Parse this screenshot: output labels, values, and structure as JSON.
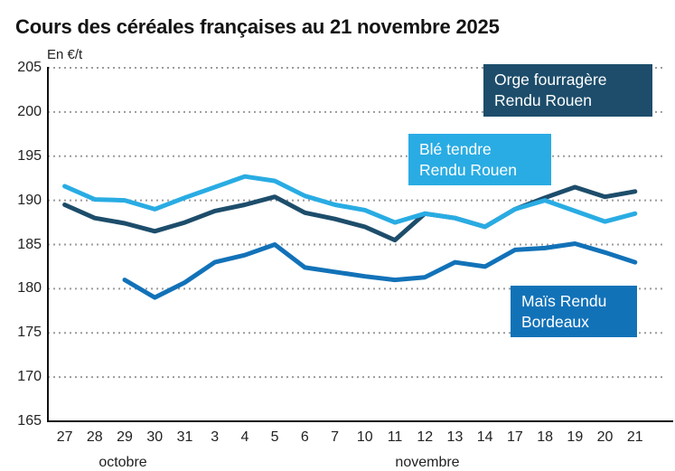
{
  "page": {
    "title": "Cours des céréales françaises au 21 novembre 2025"
  },
  "chart_data": {
    "type": "line",
    "title": "Cours des céréales françaises au 21 novembre 2025",
    "unit_label": "En €/t",
    "xlabel": "",
    "ylabel": "En €/t",
    "ylim": [
      165,
      205
    ],
    "yticks": [
      205,
      200,
      195,
      190,
      185,
      180,
      175,
      170,
      165
    ],
    "grid": "horizontal-dotted",
    "legend_position": "inline-boxes",
    "x": [
      "27",
      "28",
      "29",
      "30",
      "31",
      "3",
      "4",
      "5",
      "6",
      "7",
      "10",
      "11",
      "12",
      "13",
      "14",
      "17",
      "18",
      "19",
      "20",
      "21"
    ],
    "month_labels": [
      "octobre",
      "novembre"
    ],
    "series": [
      {
        "name": "Orge fourragère Rendu Rouen",
        "label_lines": [
          "Orge fourragère",
          "Rendu Rouen"
        ],
        "color": "#1D4D6B",
        "values": [
          189.5,
          188.0,
          187.4,
          186.5,
          187.5,
          188.8,
          189.5,
          190.4,
          188.6,
          187.9,
          187.0,
          185.5,
          188.5,
          188.0,
          187.0,
          189.0,
          190.3,
          191.5,
          190.4,
          191.0
        ]
      },
      {
        "name": "Maïs Rendu Bordeaux",
        "label_lines": [
          "Maïs Rendu",
          "Bordeaux"
        ],
        "color": "#1272B8",
        "values": [
          null,
          null,
          181.0,
          179.0,
          180.7,
          183.0,
          183.8,
          185.0,
          182.4,
          181.9,
          181.4,
          181.0,
          181.3,
          183.0,
          182.5,
          184.4,
          184.6,
          185.1,
          184.1,
          183.0
        ]
      },
      {
        "name": "Blé tendre Rendu Rouen",
        "label_lines": [
          "Blé tendre",
          "Rendu Rouen"
        ],
        "color": "#29ACE3",
        "values": [
          191.6,
          190.1,
          190.0,
          189.0,
          190.3,
          191.5,
          192.7,
          192.2,
          190.5,
          189.5,
          188.9,
          187.5,
          188.5,
          188.0,
          187.0,
          189.0,
          190.0,
          188.8,
          187.6,
          188.5
        ]
      }
    ]
  }
}
